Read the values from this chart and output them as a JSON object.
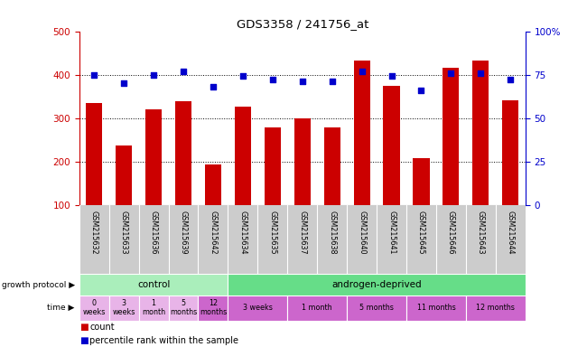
{
  "title": "GDS3358 / 241756_at",
  "samples": [
    "GSM215632",
    "GSM215633",
    "GSM215636",
    "GSM215639",
    "GSM215642",
    "GSM215634",
    "GSM215635",
    "GSM215637",
    "GSM215638",
    "GSM215640",
    "GSM215641",
    "GSM215645",
    "GSM215646",
    "GSM215643",
    "GSM215644"
  ],
  "bar_values": [
    335,
    237,
    320,
    338,
    193,
    327,
    279,
    300,
    279,
    432,
    375,
    207,
    415,
    432,
    340
  ],
  "dot_values": [
    75,
    70,
    75,
    77,
    68,
    74,
    72,
    71,
    71,
    77,
    74,
    66,
    76,
    76,
    72
  ],
  "bar_color": "#cc0000",
  "dot_color": "#0000cc",
  "ylim_left": [
    100,
    500
  ],
  "ylim_right": [
    0,
    100
  ],
  "yticks_left": [
    100,
    200,
    300,
    400,
    500
  ],
  "yticks_right": [
    0,
    25,
    50,
    75,
    100
  ],
  "yticklabels_right": [
    "0",
    "25",
    "50",
    "75",
    "100%"
  ],
  "hgrid_values": [
    200,
    300,
    400
  ],
  "growth_protocol_label": "growth protocol",
  "time_label": "time",
  "protocol_groups": [
    {
      "label": "control",
      "color": "#aaeebb",
      "start": 0,
      "end": 5
    },
    {
      "label": "androgen-deprived",
      "color": "#66dd88",
      "start": 5,
      "end": 15
    }
  ],
  "time_groups": [
    {
      "label": "0\nweeks",
      "color": "#e8b4e8",
      "start": 0,
      "end": 1
    },
    {
      "label": "3\nweeks",
      "color": "#e8b4e8",
      "start": 1,
      "end": 2
    },
    {
      "label": "1\nmonth",
      "color": "#e8b4e8",
      "start": 2,
      "end": 3
    },
    {
      "label": "5\nmonths",
      "color": "#e8b4e8",
      "start": 3,
      "end": 4
    },
    {
      "label": "12\nmonths",
      "color": "#cc66cc",
      "start": 4,
      "end": 5
    },
    {
      "label": "3 weeks",
      "color": "#cc66cc",
      "start": 5,
      "end": 7
    },
    {
      "label": "1 month",
      "color": "#cc66cc",
      "start": 7,
      "end": 9
    },
    {
      "label": "5 months",
      "color": "#cc66cc",
      "start": 9,
      "end": 11
    },
    {
      "label": "11 months",
      "color": "#cc66cc",
      "start": 11,
      "end": 13
    },
    {
      "label": "12 months",
      "color": "#cc66cc",
      "start": 13,
      "end": 15
    }
  ],
  "sample_label_bg": "#cccccc",
  "legend_count_color": "#cc0000",
  "legend_dot_color": "#0000cc",
  "background_color": "#ffffff"
}
